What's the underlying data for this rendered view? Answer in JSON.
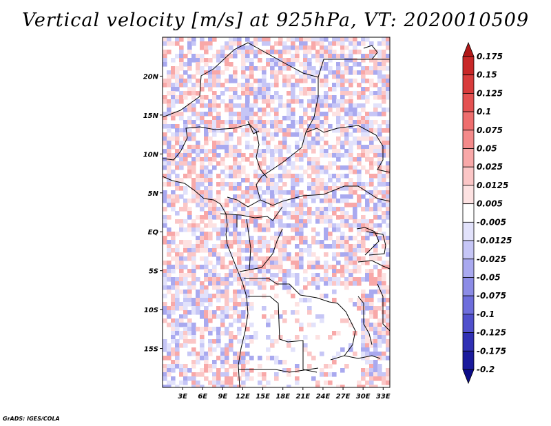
{
  "title": "Vertical velocity [m/s] at 925hPa, VT: 2020010509",
  "footer": "GrADS: IGES/COLA",
  "map": {
    "lon_range": [
      0,
      34
    ],
    "lat_range": [
      -20,
      25
    ],
    "lat_ticks": [
      "20N",
      "15N",
      "10N",
      "5N",
      "EQ",
      "5S",
      "10S",
      "15S"
    ],
    "lat_values": [
      20,
      15,
      10,
      5,
      0,
      -5,
      -10,
      -15
    ],
    "lon_ticks": [
      "3E",
      "6E",
      "9E",
      "12E",
      "15E",
      "18E",
      "21E",
      "24E",
      "27E",
      "30E",
      "33E"
    ],
    "lon_values": [
      3,
      6,
      9,
      12,
      15,
      18,
      21,
      24,
      27,
      30,
      33
    ]
  },
  "colorbar": {
    "labels": [
      "0.175",
      "0.15",
      "0.125",
      "0.1",
      "0.075",
      "0.05",
      "0.025",
      "0.0125",
      "0.005",
      "-0.005",
      "-0.0125",
      "-0.025",
      "-0.05",
      "-0.075",
      "-0.1",
      "-0.125",
      "-0.175",
      "-0.2"
    ],
    "colors": [
      "#b01818",
      "#c82828",
      "#d83c3c",
      "#e45252",
      "#ee6e6e",
      "#f48a8a",
      "#f8a8a8",
      "#fbc6c6",
      "#fde2e2",
      "#ffffff",
      "#e2e2fb",
      "#c6c6f6",
      "#a9a9ef",
      "#8c8ce6",
      "#6e6edc",
      "#5050cc",
      "#3030b4",
      "#1a1a9c",
      "#0c0c88"
    ]
  }
}
